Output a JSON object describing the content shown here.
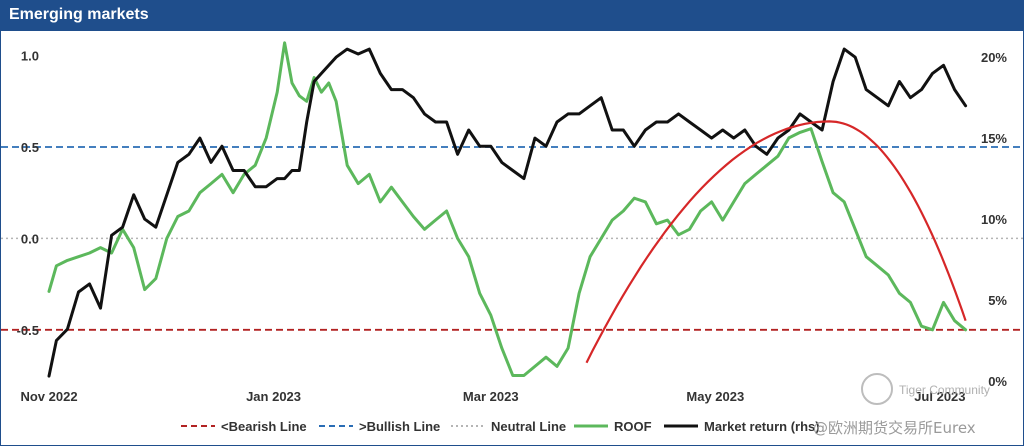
{
  "title": "Emerging markets",
  "colors": {
    "title_bar": "#1f4e8c",
    "bearish": "#b22222",
    "bullish": "#2a6db5",
    "neutral": "#b5b5b5",
    "roof": "#5cb85c",
    "market": "#111111",
    "arc": "#d62728"
  },
  "chart_data": {
    "type": "line",
    "title": "Emerging markets",
    "x_tick_labels": [
      "Nov 2022",
      "Jan 2023",
      "Mar 2023",
      "May 2023",
      "Jul 2023"
    ],
    "x_ticks": [
      "2022-11-01",
      "2023-01-01",
      "2023-03-01",
      "2023-05-01",
      "2023-07-01"
    ],
    "x_range": [
      "2022-11-01",
      "2023-07-10"
    ],
    "y_left": {
      "ticks": [
        1.0,
        0.5,
        0.0,
        -0.5
      ],
      "tick_labels": [
        "1.0",
        "0.5",
        "0.0",
        "-0.5"
      ],
      "range": [
        -0.78,
        1.08
      ]
    },
    "y_right": {
      "ticks": [
        0,
        5,
        10,
        15,
        20
      ],
      "tick_labels": [
        "0%",
        "5%",
        "10%",
        "15%",
        "20%"
      ],
      "range": [
        0,
        21
      ]
    },
    "reference_lines": [
      {
        "name": "<Bearish Line",
        "y": -0.5,
        "style": "dashed",
        "axis": "left"
      },
      {
        "name": ">Bullish Line",
        "y": 0.5,
        "style": "dashed",
        "axis": "left"
      },
      {
        "name": "Neutral Line",
        "y": 0.0,
        "style": "dotted",
        "axis": "left"
      }
    ],
    "series": [
      {
        "name": "ROOF",
        "axis": "left",
        "x": [
          "2022-11-01",
          "2022-11-03",
          "2022-11-06",
          "2022-11-09",
          "2022-11-12",
          "2022-11-15",
          "2022-11-18",
          "2022-11-21",
          "2022-11-24",
          "2022-11-27",
          "2022-11-30",
          "2022-12-03",
          "2022-12-06",
          "2022-12-09",
          "2022-12-12",
          "2022-12-15",
          "2022-12-18",
          "2022-12-21",
          "2022-12-24",
          "2022-12-27",
          "2022-12-30",
          "2023-01-02",
          "2023-01-04",
          "2023-01-06",
          "2023-01-08",
          "2023-01-10",
          "2023-01-12",
          "2023-01-14",
          "2023-01-16",
          "2023-01-18",
          "2023-01-21",
          "2023-01-24",
          "2023-01-27",
          "2023-01-30",
          "2023-02-02",
          "2023-02-05",
          "2023-02-08",
          "2023-02-11",
          "2023-02-14",
          "2023-02-17",
          "2023-02-20",
          "2023-02-23",
          "2023-02-26",
          "2023-03-01",
          "2023-03-04",
          "2023-03-07",
          "2023-03-10",
          "2023-03-13",
          "2023-03-16",
          "2023-03-19",
          "2023-03-22",
          "2023-03-25",
          "2023-03-28",
          "2023-03-31",
          "2023-04-03",
          "2023-04-06",
          "2023-04-09",
          "2023-04-12",
          "2023-04-15",
          "2023-04-18",
          "2023-04-21",
          "2023-04-24",
          "2023-04-27",
          "2023-04-30",
          "2023-05-03",
          "2023-05-06",
          "2023-05-09",
          "2023-05-12",
          "2023-05-15",
          "2023-05-18",
          "2023-05-21",
          "2023-05-24",
          "2023-05-27",
          "2023-05-30",
          "2023-06-02",
          "2023-06-05",
          "2023-06-08",
          "2023-06-11",
          "2023-06-14",
          "2023-06-17",
          "2023-06-20",
          "2023-06-23",
          "2023-06-26",
          "2023-06-29",
          "2023-07-02",
          "2023-07-05",
          "2023-07-08"
        ],
        "y": [
          -0.29,
          -0.15,
          -0.12,
          -0.1,
          -0.08,
          -0.05,
          -0.08,
          0.05,
          -0.05,
          -0.28,
          -0.22,
          0.0,
          0.12,
          0.15,
          0.25,
          0.3,
          0.35,
          0.25,
          0.35,
          0.4,
          0.55,
          0.8,
          1.07,
          0.85,
          0.78,
          0.75,
          0.88,
          0.8,
          0.85,
          0.75,
          0.4,
          0.3,
          0.35,
          0.2,
          0.28,
          0.2,
          0.12,
          0.05,
          0.1,
          0.15,
          0.0,
          -0.1,
          -0.3,
          -0.42,
          -0.6,
          -0.75,
          -0.75,
          -0.7,
          -0.65,
          -0.7,
          -0.6,
          -0.3,
          -0.1,
          0.0,
          0.1,
          0.15,
          0.22,
          0.2,
          0.08,
          0.1,
          0.02,
          0.05,
          0.15,
          0.2,
          0.1,
          0.2,
          0.3,
          0.35,
          0.4,
          0.45,
          0.55,
          0.58,
          0.6,
          0.42,
          0.25,
          0.2,
          0.05,
          -0.1,
          -0.15,
          -0.2,
          -0.3,
          -0.35,
          -0.48,
          -0.5,
          -0.35,
          -0.45,
          -0.5
        ]
      },
      {
        "name": "Market return (rhs)",
        "axis": "right",
        "x": [
          "2022-11-01",
          "2022-11-03",
          "2022-11-06",
          "2022-11-09",
          "2022-11-12",
          "2022-11-15",
          "2022-11-18",
          "2022-11-21",
          "2022-11-24",
          "2022-11-27",
          "2022-11-30",
          "2022-12-03",
          "2022-12-06",
          "2022-12-09",
          "2022-12-12",
          "2022-12-15",
          "2022-12-18",
          "2022-12-21",
          "2022-12-24",
          "2022-12-27",
          "2022-12-30",
          "2023-01-02",
          "2023-01-04",
          "2023-01-06",
          "2023-01-08",
          "2023-01-10",
          "2023-01-12",
          "2023-01-14",
          "2023-01-16",
          "2023-01-18",
          "2023-01-21",
          "2023-01-24",
          "2023-01-27",
          "2023-01-30",
          "2023-02-02",
          "2023-02-05",
          "2023-02-08",
          "2023-02-11",
          "2023-02-14",
          "2023-02-17",
          "2023-02-20",
          "2023-02-23",
          "2023-02-26",
          "2023-03-01",
          "2023-03-04",
          "2023-03-07",
          "2023-03-10",
          "2023-03-13",
          "2023-03-16",
          "2023-03-19",
          "2023-03-22",
          "2023-03-25",
          "2023-03-28",
          "2023-03-31",
          "2023-04-03",
          "2023-04-06",
          "2023-04-09",
          "2023-04-12",
          "2023-04-15",
          "2023-04-18",
          "2023-04-21",
          "2023-04-24",
          "2023-04-27",
          "2023-04-30",
          "2023-05-03",
          "2023-05-06",
          "2023-05-09",
          "2023-05-12",
          "2023-05-15",
          "2023-05-18",
          "2023-05-21",
          "2023-05-24",
          "2023-05-27",
          "2023-05-30",
          "2023-06-02",
          "2023-06-05",
          "2023-06-08",
          "2023-06-11",
          "2023-06-14",
          "2023-06-17",
          "2023-06-20",
          "2023-06-23",
          "2023-06-26",
          "2023-06-29",
          "2023-07-02",
          "2023-07-05",
          "2023-07-08"
        ],
        "y": [
          0.3,
          2.5,
          3.2,
          5.5,
          6.0,
          4.5,
          9.0,
          9.5,
          11.5,
          10.0,
          9.5,
          11.5,
          13.5,
          14.0,
          15.0,
          13.5,
          14.5,
          13.0,
          13.0,
          12.0,
          12.0,
          12.5,
          12.5,
          13.0,
          13.0,
          16.0,
          18.5,
          19.0,
          19.5,
          20.0,
          20.5,
          20.2,
          20.5,
          19.0,
          18.0,
          18.0,
          17.5,
          16.5,
          16.0,
          16.0,
          14.0,
          15.5,
          14.5,
          14.5,
          13.5,
          13.0,
          12.5,
          15.0,
          14.5,
          16.0,
          16.5,
          16.5,
          17.0,
          17.5,
          15.5,
          15.5,
          14.5,
          15.5,
          16.0,
          16.0,
          16.5,
          16.0,
          15.5,
          15.0,
          15.5,
          15.0,
          15.5,
          14.5,
          14.0,
          15.0,
          15.5,
          16.5,
          16.0,
          15.5,
          18.5,
          20.5,
          20.0,
          18.0,
          17.5,
          17.0,
          18.5,
          17.5,
          18.0,
          19.0,
          19.5,
          18.0,
          17.0
        ]
      }
    ],
    "annotations": [
      {
        "type": "curve",
        "label": "",
        "color": "#d62728",
        "start": {
          "x": "2023-03-27",
          "y": -0.68
        },
        "peak": {
          "x": "2023-06-01",
          "y": 0.64
        },
        "end": {
          "x": "2023-07-08",
          "y": -0.45
        }
      }
    ],
    "legend": {
      "position": "bottom",
      "items": [
        {
          "label": "<Bearish Line",
          "style": "dashed",
          "color": "#b22222"
        },
        {
          "label": ">Bullish Line",
          "style": "dashed",
          "color": "#2a6db5"
        },
        {
          "label": "Neutral Line",
          "style": "dotted",
          "color": "#b5b5b5"
        },
        {
          "label": "ROOF",
          "style": "solid",
          "color": "#5cb85c"
        },
        {
          "label": "Market return (rhs)",
          "style": "solid",
          "color": "#111111"
        }
      ]
    },
    "grid": false
  },
  "watermarks": {
    "brand": "Tiger Community",
    "source": "@欧洲期货交易所Eurex"
  }
}
